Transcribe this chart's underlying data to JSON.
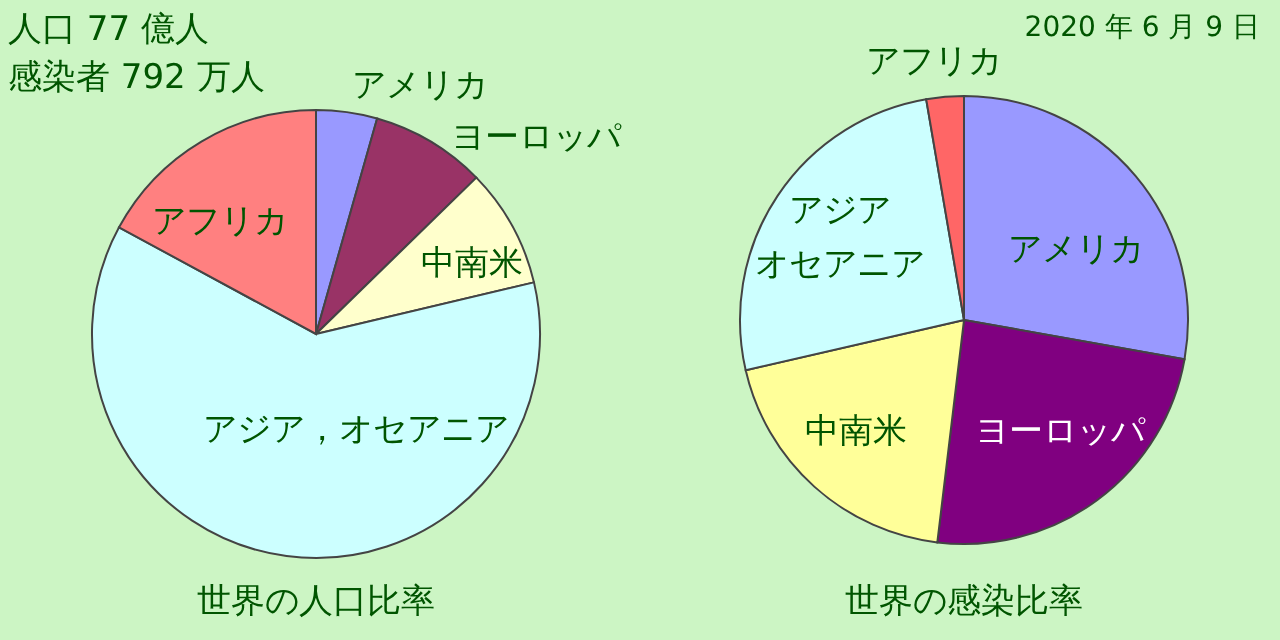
{
  "chart_data": [
    {
      "type": "pie",
      "title": "世界の人口比率",
      "categories": [
        "アメリカ",
        "ヨーロッパ",
        "中南米",
        "アジア，オセアニア",
        "アフリカ"
      ],
      "values": [
        4.4,
        8.3,
        8.6,
        61.6,
        17.1
      ],
      "colors": [
        "#9999ff",
        "#993366",
        "#ffffcc",
        "#ccffff",
        "#ff8080"
      ],
      "annotations": [
        "人口 77 億人",
        "感染者 792 万人"
      ]
    },
    {
      "type": "pie",
      "title": "世界の感染比率",
      "categories": [
        "アメリカ",
        "ヨーロッパ",
        "中南米",
        "アジアオセアニア",
        "アフリカ"
      ],
      "values": [
        27.8,
        24.1,
        19.5,
        25.9,
        2.7
      ],
      "colors": [
        "#9999ff",
        "#800080",
        "#ffff99",
        "#ccffff",
        "#ff6666"
      ],
      "annotations": [
        "2020 年 6 月 9 日"
      ]
    }
  ]
}
